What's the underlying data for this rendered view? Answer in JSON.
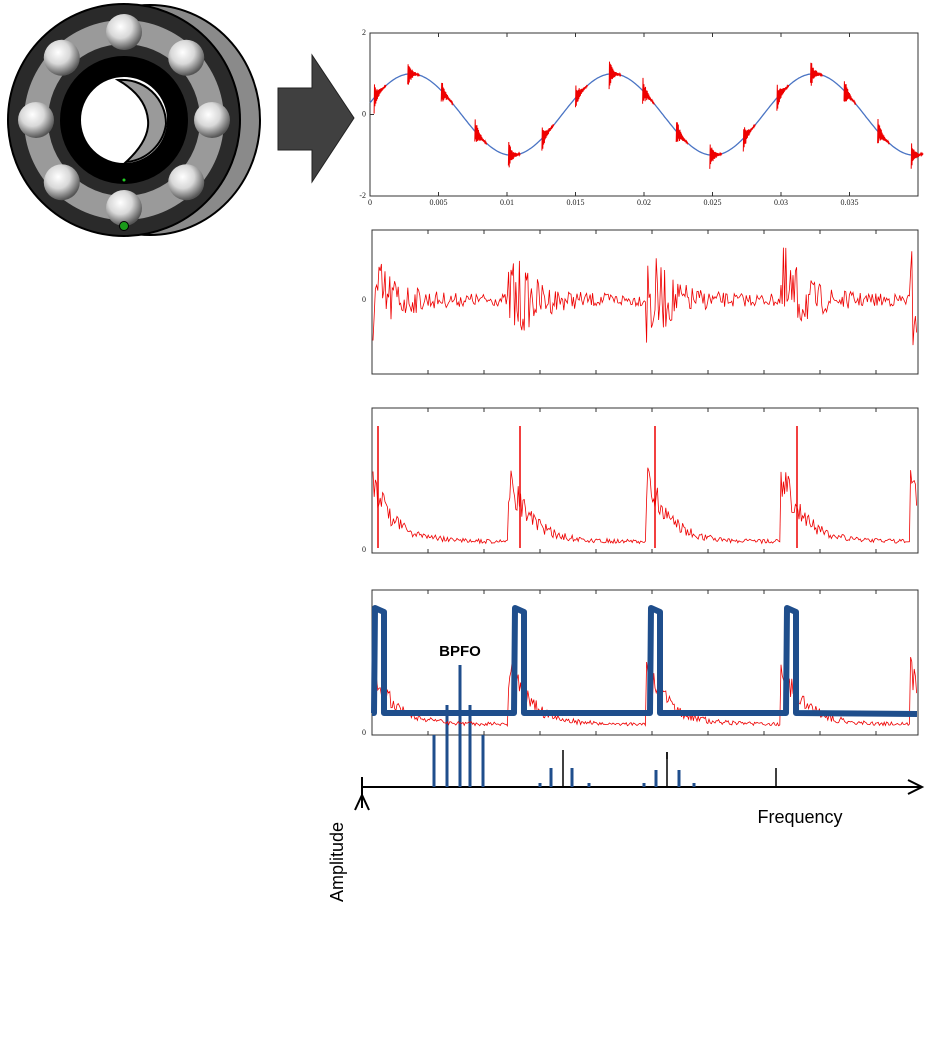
{
  "signal_panel": {
    "xlim": [
      0,
      0.04
    ],
    "ylim": [
      -2,
      2
    ],
    "xticks": [
      0,
      0.005,
      0.01,
      0.015,
      0.02,
      0.025,
      0.03,
      0.035
    ],
    "yticks": [
      2,
      0,
      -2
    ]
  },
  "filtered_panel": {
    "yticks": [
      0
    ]
  },
  "envelope_panel": {
    "yticks": [
      0
    ]
  },
  "pulse_panel": {
    "yticks": [
      0
    ]
  },
  "spectrum": {
    "peak_label": "BPFO",
    "y_label": "Amplitude",
    "x_label": "Frequency"
  }
}
